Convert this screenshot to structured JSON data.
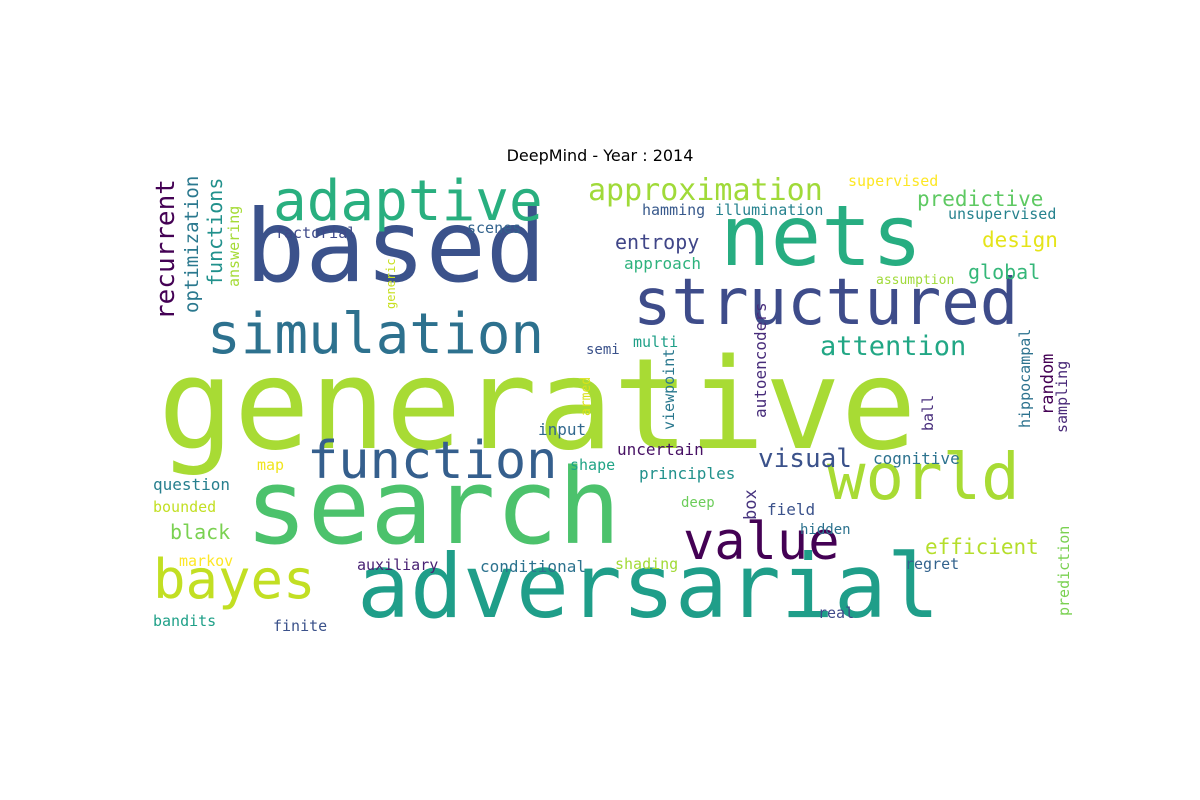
{
  "title": "DeepMind - Year : 2014",
  "words": [
    {
      "text": "generative",
      "color": "#a8db34"
    },
    {
      "text": "search",
      "color": "#4cc26c"
    },
    {
      "text": "based",
      "color": "#3b528b"
    },
    {
      "text": "nets",
      "color": "#27ad81"
    },
    {
      "text": "adversarial",
      "color": "#1f9e89"
    },
    {
      "text": "structured",
      "color": "#3e4c8a"
    },
    {
      "text": "world",
      "color": "#a8db34"
    },
    {
      "text": "simulation",
      "color": "#2d718e"
    },
    {
      "text": "adaptive",
      "color": "#29af7f"
    },
    {
      "text": "function",
      "color": "#355f8d"
    },
    {
      "text": "value",
      "color": "#440154"
    },
    {
      "text": "bayes",
      "color": "#c2df23"
    },
    {
      "text": "approximation",
      "color": "#a0da39"
    },
    {
      "text": "attention",
      "color": "#22a785"
    },
    {
      "text": "recurrent",
      "color": "#440154"
    },
    {
      "text": "optimization",
      "color": "#2a788e"
    },
    {
      "text": "functions",
      "color": "#21918c"
    },
    {
      "text": "visual",
      "color": "#3b528b"
    },
    {
      "text": "predictive",
      "color": "#5ec962"
    },
    {
      "text": "entropy",
      "color": "#404688"
    },
    {
      "text": "design",
      "color": "#e5e419"
    },
    {
      "text": "global",
      "color": "#35b779"
    },
    {
      "text": "efficient",
      "color": "#b5de2b"
    },
    {
      "text": "black",
      "color": "#7ad151"
    },
    {
      "text": "answering",
      "color": "#a5db36"
    },
    {
      "text": "factorial",
      "color": "#3e4989"
    },
    {
      "text": "scenes",
      "color": "#33638d"
    },
    {
      "text": "hamming",
      "color": "#38598c"
    },
    {
      "text": "illumination",
      "color": "#26828e"
    },
    {
      "text": "supervised",
      "color": "#fde725"
    },
    {
      "text": "unsupervised",
      "color": "#26828e"
    },
    {
      "text": "approach",
      "color": "#2db27d"
    },
    {
      "text": "assumption",
      "color": "#a0da39"
    },
    {
      "text": "generic",
      "color": "#c8e020"
    },
    {
      "text": "autoencoders",
      "color": "#472c7a"
    },
    {
      "text": "hippocampal",
      "color": "#2c728e"
    },
    {
      "text": "random",
      "color": "#440154"
    },
    {
      "text": "sampling",
      "color": "#482878"
    },
    {
      "text": "semi",
      "color": "#3b528b"
    },
    {
      "text": "multi",
      "color": "#1fa088"
    },
    {
      "text": "viewpoint",
      "color": "#2a788e"
    },
    {
      "text": "armed",
      "color": "#d8e219"
    },
    {
      "text": "ball",
      "color": "#472d7b"
    },
    {
      "text": "input",
      "color": "#31688e"
    },
    {
      "text": "uncertain",
      "color": "#471164"
    },
    {
      "text": "cognitive",
      "color": "#2c728e"
    },
    {
      "text": "principles",
      "color": "#21918c"
    },
    {
      "text": "map",
      "color": "#f1e51d"
    },
    {
      "text": "shape",
      "color": "#20a486"
    },
    {
      "text": "box",
      "color": "#46337e"
    },
    {
      "text": "question",
      "color": "#277f8e"
    },
    {
      "text": "bounded",
      "color": "#c2df23"
    },
    {
      "text": "field",
      "color": "#3b528b"
    },
    {
      "text": "deep",
      "color": "#6ccd5a"
    },
    {
      "text": "hidden",
      "color": "#2c728e"
    },
    {
      "text": "markov",
      "color": "#fde725"
    },
    {
      "text": "auxiliary",
      "color": "#482173"
    },
    {
      "text": "conditional",
      "color": "#2c728e"
    },
    {
      "text": "shading",
      "color": "#a2da37"
    },
    {
      "text": "regret",
      "color": "#33638d"
    },
    {
      "text": "prediction",
      "color": "#7ad151"
    },
    {
      "text": "real",
      "color": "#3e4989"
    },
    {
      "text": "bandits",
      "color": "#1fa088"
    },
    {
      "text": "finite",
      "color": "#3b528b"
    }
  ]
}
